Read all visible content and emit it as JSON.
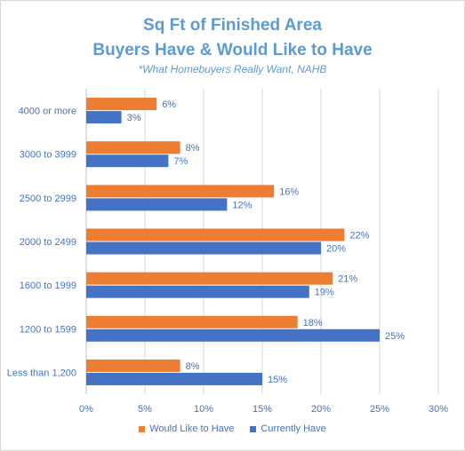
{
  "chart_data": {
    "type": "bar",
    "orientation": "horizontal",
    "title": "Sq Ft of Finished Area",
    "title_line2": "Buyers Have & Would Like to Have",
    "subtitle": "*What Homebuyers Really Want, NAHB",
    "categories": [
      "4000 or more",
      "3000 to 3999",
      "2500 to 2999",
      "2000 to 2499",
      "1600 to 1999",
      "1200 to 1599",
      "Less than 1,200"
    ],
    "series": [
      {
        "name": "Would Like to Have",
        "color": "#ed7d31",
        "values": [
          6,
          8,
          16,
          22,
          21,
          18,
          8
        ],
        "labels": [
          "6%",
          "8%",
          "16%",
          "22%",
          "21%",
          "18%",
          "8%"
        ]
      },
      {
        "name": "Currently Have",
        "color": "#4472c4",
        "values": [
          3,
          7,
          12,
          20,
          19,
          25,
          15
        ],
        "labels": [
          "3%",
          "7%",
          "12%",
          "20%",
          "19%",
          "25%",
          "15%"
        ]
      }
    ],
    "xlim": [
      0,
      30
    ],
    "x_ticks": [
      "0%",
      "5%",
      "10%",
      "15%",
      "20%",
      "25%",
      "30%"
    ],
    "grid": "vertical",
    "legend_position": "bottom"
  }
}
